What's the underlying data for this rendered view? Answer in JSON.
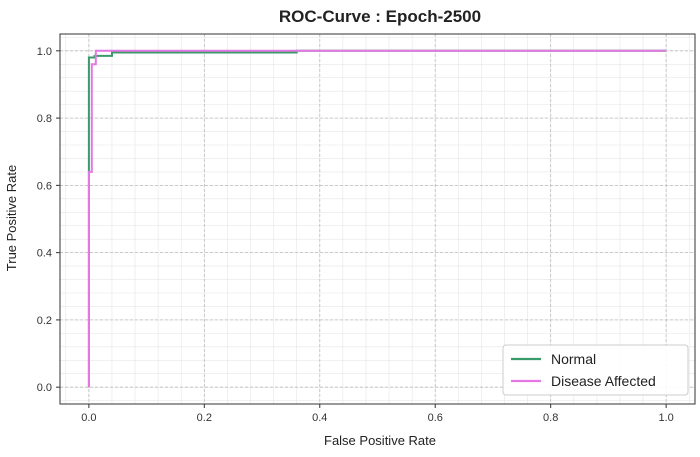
{
  "chart_data": {
    "type": "line",
    "title": "ROC-Curve : Epoch-2500",
    "xlabel": "False Positive Rate",
    "ylabel": "True Positive Rate",
    "xlim": [
      -0.05,
      1.05
    ],
    "ylim": [
      -0.05,
      1.05
    ],
    "xticks": [
      "0.0",
      "0.2",
      "0.4",
      "0.6",
      "0.8",
      "1.0"
    ],
    "yticks": [
      "0.0",
      "0.2",
      "0.4",
      "0.6",
      "0.8",
      "1.0"
    ],
    "grid": true,
    "minor_grid": true,
    "legend_position": "bottom-right",
    "series": [
      {
        "name": "Normal",
        "color": "#3a9a6a",
        "points": [
          [
            0.0,
            0.0
          ],
          [
            0.0,
            0.64
          ],
          [
            0.0,
            0.98
          ],
          [
            0.01,
            0.98
          ],
          [
            0.01,
            0.985
          ],
          [
            0.04,
            0.985
          ],
          [
            0.04,
            0.995
          ],
          [
            0.36,
            0.995
          ],
          [
            0.36,
            1.0
          ],
          [
            1.0,
            1.0
          ]
        ]
      },
      {
        "name": "Disease Affected",
        "color": "#e377e3",
        "points": [
          [
            0.0,
            0.0
          ],
          [
            0.0,
            0.64
          ],
          [
            0.005,
            0.64
          ],
          [
            0.005,
            0.96
          ],
          [
            0.012,
            0.96
          ],
          [
            0.012,
            1.0
          ],
          [
            1.0,
            1.0
          ]
        ]
      }
    ]
  }
}
